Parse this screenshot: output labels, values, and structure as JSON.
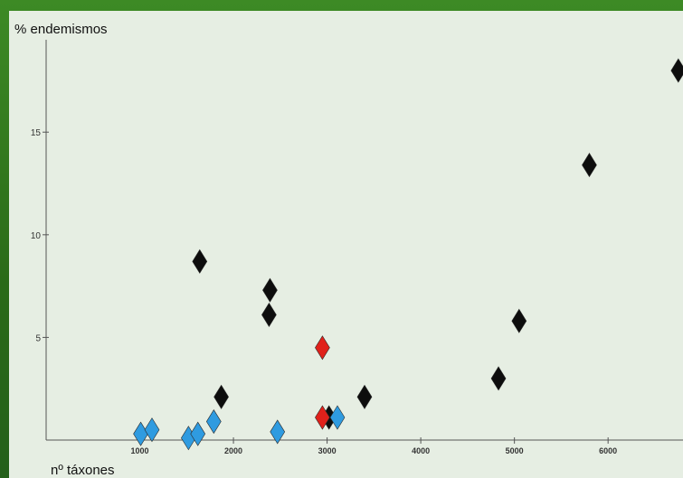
{
  "chart_data": {
    "type": "scatter",
    "ylabel": "% endemismos",
    "xlabel": "nº táxones",
    "xlim": [
      0,
      6800
    ],
    "ylim": [
      0,
      19.5
    ],
    "xticks": [
      1000,
      2000,
      3000,
      4000,
      5000,
      6000
    ],
    "yticks": [
      5,
      10,
      15
    ],
    "grid": false,
    "series": [
      {
        "color": "#0d0d0d",
        "points": [
          {
            "x": 1640,
            "y": 8.7
          },
          {
            "x": 1870,
            "y": 2.1
          },
          {
            "x": 2390,
            "y": 7.3
          },
          {
            "x": 2380,
            "y": 6.1
          },
          {
            "x": 3020,
            "y": 1.1
          },
          {
            "x": 3400,
            "y": 2.1
          },
          {
            "x": 4830,
            "y": 3.0
          },
          {
            "x": 5050,
            "y": 5.8
          },
          {
            "x": 5800,
            "y": 13.4
          },
          {
            "x": 6750,
            "y": 18.0
          }
        ]
      },
      {
        "color": "#e0211b",
        "points": [
          {
            "x": 2950,
            "y": 4.5
          },
          {
            "x": 2950,
            "y": 1.1
          }
        ]
      },
      {
        "color": "#2f9be0",
        "points": [
          {
            "x": 1010,
            "y": 0.3
          },
          {
            "x": 1130,
            "y": 0.5
          },
          {
            "x": 1520,
            "y": 0.1
          },
          {
            "x": 1620,
            "y": 0.3
          },
          {
            "x": 1790,
            "y": 0.9
          },
          {
            "x": 2470,
            "y": 0.4
          },
          {
            "x": 3110,
            "y": 1.1
          }
        ]
      }
    ]
  }
}
